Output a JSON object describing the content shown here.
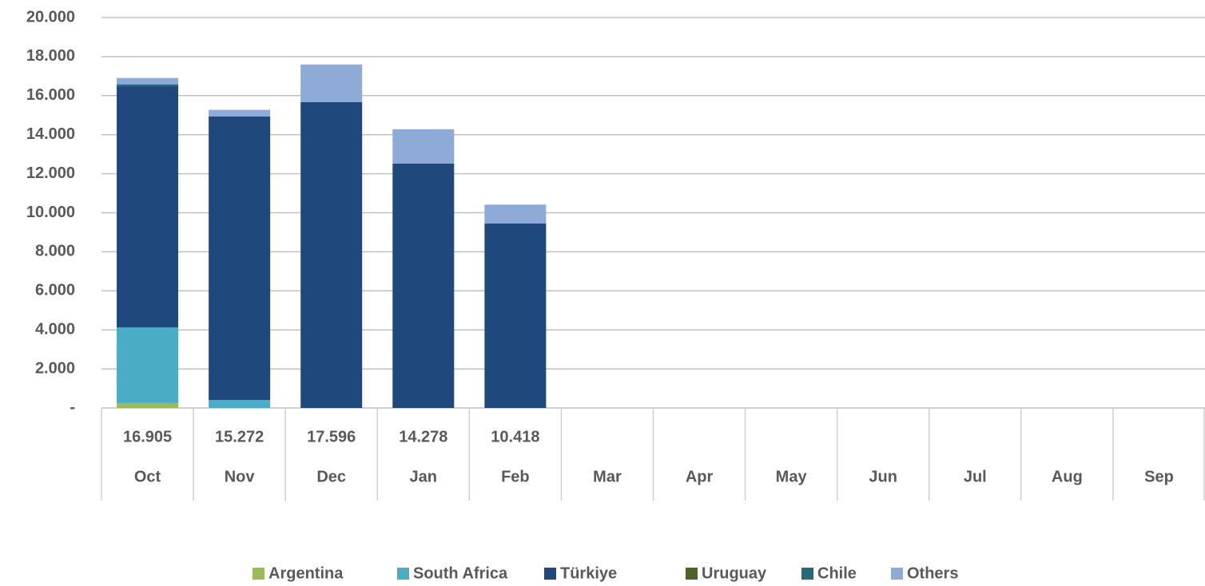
{
  "chart_data": {
    "type": "stacked_bar",
    "categories": [
      "Oct",
      "Nov",
      "Dec",
      "Jan",
      "Feb",
      "Mar",
      "Apr",
      "May",
      "Jun",
      "Jul",
      "Aug",
      "Sep"
    ],
    "series": [
      {
        "name": "Argentina",
        "color": "#9bbb59",
        "values": [
          250,
          0,
          0,
          0,
          0,
          null,
          null,
          null,
          null,
          null,
          null,
          null
        ]
      },
      {
        "name": "South Africa",
        "color": "#4bacc6",
        "values": [
          3880,
          410,
          0,
          0,
          0,
          null,
          null,
          null,
          null,
          null,
          null,
          null
        ]
      },
      {
        "name": "Türkiye",
        "color": "#1f497d",
        "values": [
          12350,
          14520,
          15665,
          12515,
          9448,
          null,
          null,
          null,
          null,
          null,
          null,
          null
        ]
      },
      {
        "name": "Uruguay",
        "color": "#4f6228",
        "values": [
          0,
          0,
          0,
          0,
          0,
          null,
          null,
          null,
          null,
          null,
          null,
          null
        ]
      },
      {
        "name": "Chile",
        "color": "#246a78",
        "values": [
          100,
          0,
          0,
          0,
          0,
          null,
          null,
          null,
          null,
          null,
          null,
          null
        ]
      },
      {
        "name": "Others",
        "color": "#8eaad6",
        "values": [
          325,
          342,
          1931,
          1763,
          970,
          null,
          null,
          null,
          null,
          null,
          null,
          null
        ]
      }
    ],
    "totals": {
      "values": [
        16905,
        15272,
        17596,
        14278,
        10418,
        null,
        null,
        null,
        null,
        null,
        null,
        null
      ],
      "value_labels": [
        "16.905",
        "15.272",
        "17.596",
        "14.278",
        "10.418",
        null,
        null,
        null,
        null,
        null,
        null,
        null
      ]
    },
    "ylim": [
      0,
      20000
    ],
    "yticks": [
      {
        "value": 0,
        "label": "-"
      },
      {
        "value": 2000,
        "label": "2.000"
      },
      {
        "value": 4000,
        "label": "4.000"
      },
      {
        "value": 6000,
        "label": "6.000"
      },
      {
        "value": 8000,
        "label": "8.000"
      },
      {
        "value": 10000,
        "label": "10.000"
      },
      {
        "value": 12000,
        "label": "12.000"
      },
      {
        "value": 14000,
        "label": "14.000"
      },
      {
        "value": 16000,
        "label": "16.000"
      },
      {
        "value": 18000,
        "label": "18.000"
      },
      {
        "value": 20000,
        "label": "20.000"
      }
    ],
    "grid": true,
    "legend": "bottom"
  }
}
